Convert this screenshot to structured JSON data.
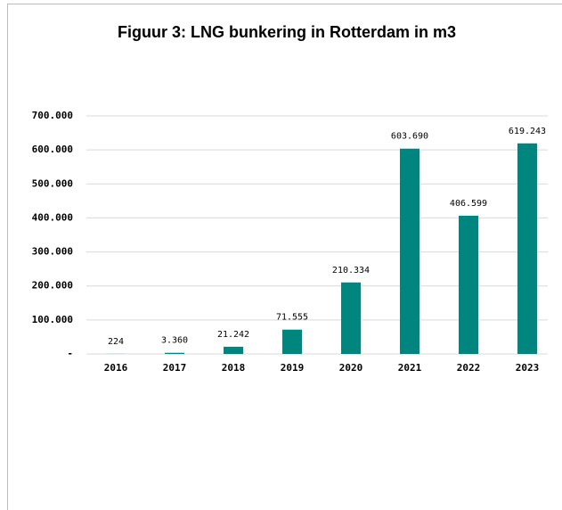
{
  "chart_data": {
    "type": "bar",
    "title": "Figuur 3: LNG bunkering in Rotterdam in m3",
    "categories": [
      "2016",
      "2017",
      "2018",
      "2019",
      "2020",
      "2021",
      "2022",
      "2023"
    ],
    "values": [
      224,
      3360,
      21242,
      71555,
      210334,
      603690,
      406599,
      619243
    ],
    "value_labels": [
      "224",
      "3.360",
      "21.242",
      "71.555",
      "210.334",
      "603.690",
      "406.599",
      "619.243"
    ],
    "color": "#00857f",
    "ylim": [
      0,
      700000
    ],
    "yticks": [
      {
        "value": 0,
        "label": "-"
      },
      {
        "value": 100000,
        "label": "100.000"
      },
      {
        "value": 200000,
        "label": "200.000"
      },
      {
        "value": 300000,
        "label": "300.000"
      },
      {
        "value": 400000,
        "label": "400.000"
      },
      {
        "value": 500000,
        "label": "500.000"
      },
      {
        "value": 600000,
        "label": "600.000"
      },
      {
        "value": 700000,
        "label": "700.000"
      }
    ],
    "grid": true
  }
}
